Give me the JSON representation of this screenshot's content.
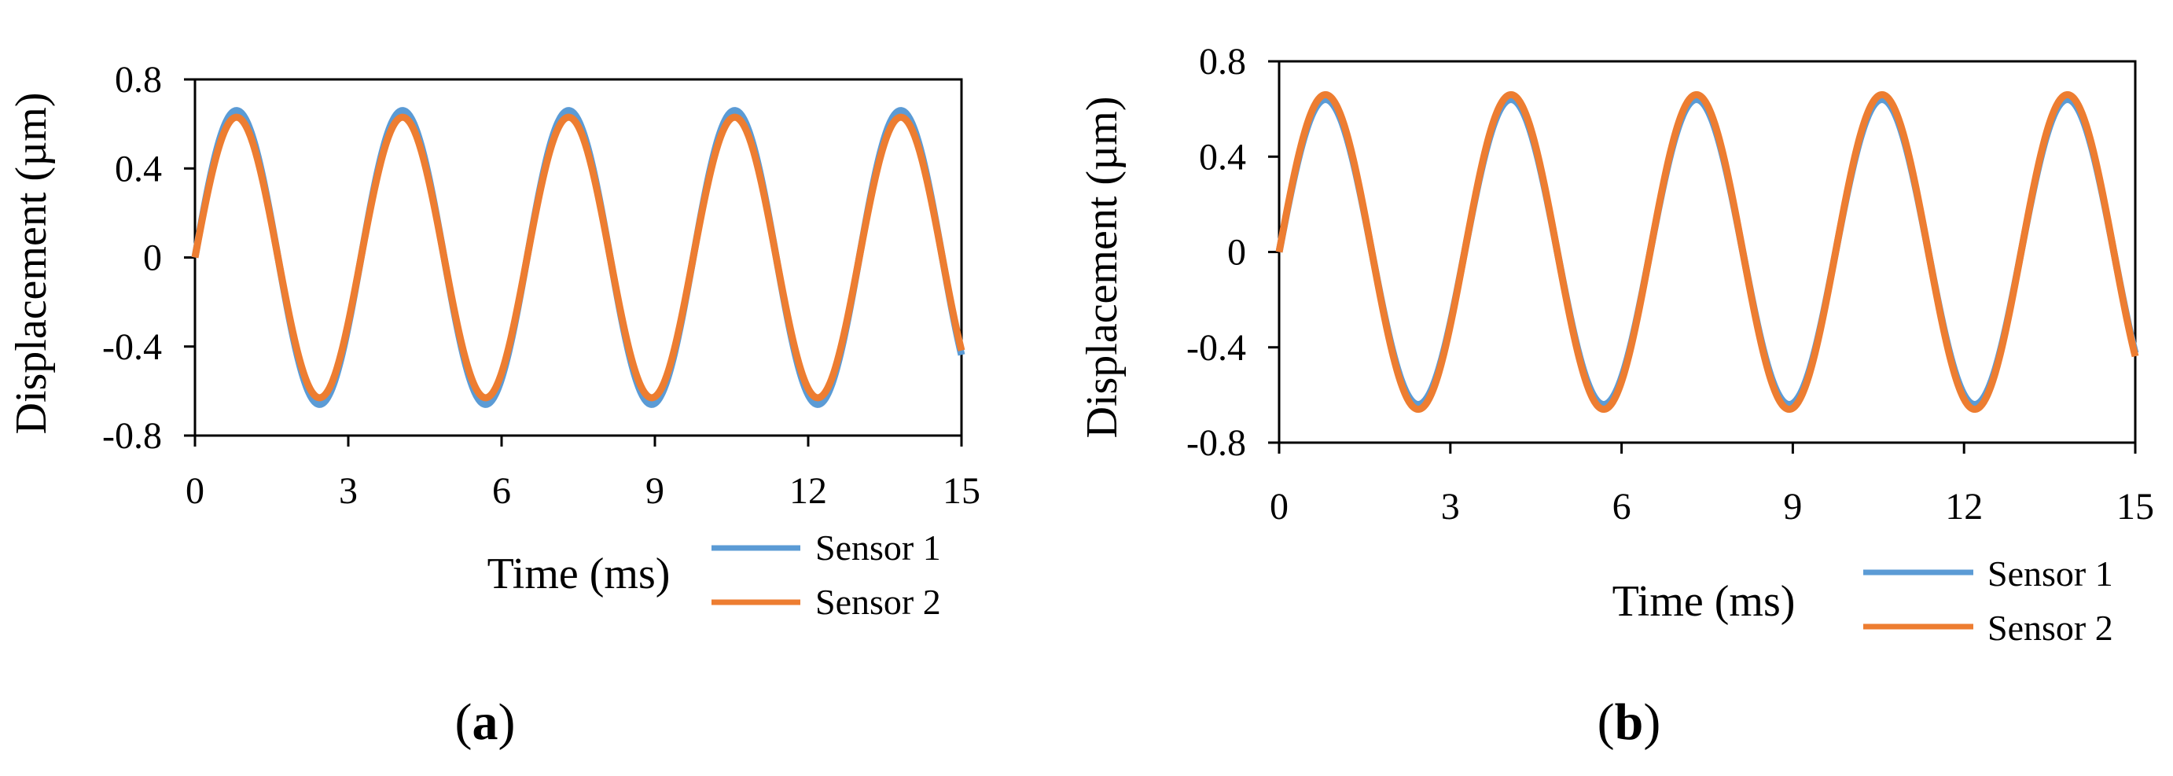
{
  "chart_data": [
    {
      "type": "line",
      "panel_label": "a",
      "xlabel": "Time (ms)",
      "ylabel": "Displacement (µm)",
      "xlim": [
        0,
        15
      ],
      "ylim": [
        -0.8,
        0.8
      ],
      "x_ticks": [
        0,
        3,
        6,
        9,
        12,
        15
      ],
      "y_ticks": [
        0.8,
        0.4,
        0,
        -0.4,
        -0.8
      ],
      "x_tick_labels": [
        "0",
        "3",
        "6",
        "9",
        "12",
        "15"
      ],
      "y_tick_labels": [
        "0.8",
        "0.4",
        "0",
        "-0.4",
        "-0.8"
      ],
      "grid": false,
      "legend_position": "bottom-right",
      "series": [
        {
          "name": "Sensor 1",
          "color": "#5B9BD5",
          "amplitude": 0.66,
          "period_ms": 3.25,
          "phase_ms": 0
        },
        {
          "name": "Sensor 2",
          "color": "#ED7D31",
          "amplitude": 0.63,
          "period_ms": 3.25,
          "phase_ms": 0
        }
      ]
    },
    {
      "type": "line",
      "panel_label": "b",
      "xlabel": "Time (ms)",
      "ylabel": "Displacement (µm)",
      "xlim": [
        0,
        15
      ],
      "ylim": [
        -0.8,
        0.8
      ],
      "x_ticks": [
        0,
        3,
        6,
        9,
        12,
        15
      ],
      "y_ticks": [
        0.8,
        0.4,
        0,
        -0.4,
        -0.8
      ],
      "x_tick_labels": [
        "0",
        "3",
        "6",
        "9",
        "12",
        "15"
      ],
      "y_tick_labels": [
        "0.8",
        "0.4",
        "0",
        "-0.4",
        "-0.8"
      ],
      "grid": false,
      "legend_position": "bottom-right",
      "series": [
        {
          "name": "Sensor 1",
          "color": "#5B9BD5",
          "amplitude": 0.64,
          "period_ms": 3.25,
          "phase_ms": 0
        },
        {
          "name": "Sensor 2",
          "color": "#ED7D31",
          "amplitude": 0.66,
          "period_ms": 3.25,
          "phase_ms": 0
        }
      ]
    }
  ]
}
